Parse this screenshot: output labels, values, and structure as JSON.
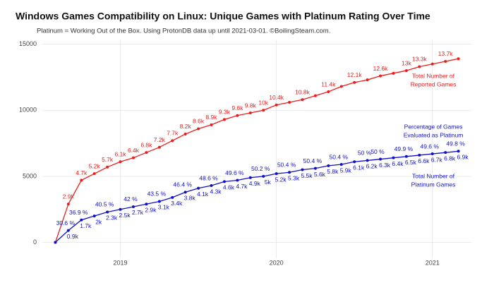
{
  "chart_data": {
    "type": "line",
    "title": "Windows Games Compatibility on Linux: Unique Games with Platinum Rating Over Time",
    "subtitle": "Platinum = Working Out of the Box. Using ProtonDB data up until 2021-03-01. ©BoilingSteam.com.",
    "x": [
      "2018-08",
      "2018-09",
      "2018-10",
      "2018-11",
      "2018-12",
      "2019-01",
      "2019-02",
      "2019-03",
      "2019-04",
      "2019-05",
      "2019-06",
      "2019-07",
      "2019-08",
      "2019-09",
      "2019-10",
      "2019-11",
      "2019-12",
      "2020-01",
      "2020-02",
      "2020-03",
      "2020-04",
      "2020-05",
      "2020-06",
      "2020-07",
      "2020-08",
      "2020-09",
      "2020-10",
      "2020-11",
      "2020-12",
      "2021-01",
      "2021-02",
      "2021-03"
    ],
    "xlim": [
      "2018-07",
      "2021-04"
    ],
    "xticks": [
      {
        "value": "2019-01",
        "label": "2019"
      },
      {
        "value": "2020-01",
        "label": "2020"
      },
      {
        "value": "2021-01",
        "label": "2021"
      }
    ],
    "ylim": [
      -1200,
      15300
    ],
    "yticks": [
      0,
      5000,
      10000,
      15000
    ],
    "grid": true,
    "series": [
      {
        "name": "Total Number of Reported Games",
        "color": "#ee1c1c",
        "values": [
          0,
          2900,
          4700,
          5200,
          5700,
          6100,
          6400,
          6800,
          7200,
          7700,
          8200,
          8600,
          8900,
          9300,
          9600,
          9800,
          10000,
          10400,
          10600,
          10800,
          11100,
          11400,
          11800,
          12100,
          12300,
          12600,
          12800,
          13000,
          13300,
          13500,
          13700,
          13900
        ],
        "value_labels": [
          null,
          "2.9k",
          "4.7k",
          "5.2k",
          "5.7k",
          "6.1k",
          "6.4k",
          "6.8k",
          "7.2k",
          "7.7k",
          "8.2k",
          "8.6k",
          "8.9k",
          "9.3k",
          "9.6k",
          "9.8k",
          "10k",
          "10.4k",
          null,
          "10.8k",
          null,
          "11.4k",
          null,
          "12.1k",
          null,
          "12.6k",
          null,
          "13k",
          "13.3k",
          null,
          "13.7k",
          null
        ]
      },
      {
        "name": "Total Number of Platinum Games",
        "color": "#1010cc",
        "values": [
          0,
          900,
          1700,
          2000,
          2300,
          2500,
          2700,
          2900,
          3100,
          3400,
          3800,
          4100,
          4300,
          4600,
          4700,
          4900,
          5000,
          5200,
          5300,
          5500,
          5600,
          5800,
          5900,
          6100,
          6200,
          6300,
          6400,
          6500,
          6600,
          6700,
          6800,
          6900
        ],
        "value_labels": [
          null,
          "0.9k",
          "1.7k",
          "2k",
          "2.3k",
          "2.5k",
          "2.7k",
          "2.9k",
          "3.1k",
          "3.4k",
          "3.8k",
          "4.1k",
          "4.3k",
          "4.6k",
          "4.7k",
          "4.9k",
          "5k",
          "5.2k",
          "5.3k",
          "5.5k",
          "5.6k",
          "5.8k",
          "5.9k",
          "6.1k",
          "6.2k",
          "6.3k",
          "6.4k",
          "6.5k",
          "6.6k",
          "6.7k",
          "6.8k",
          "6.9k"
        ]
      }
    ],
    "percentages": {
      "name": "Percentage of Games Evaluated as Platinum",
      "color": "#1010cc",
      "values": [
        null,
        30.6,
        36.9,
        null,
        40.5,
        null,
        42,
        null,
        43.5,
        null,
        46.4,
        null,
        48.6,
        null,
        49.6,
        null,
        50.2,
        null,
        50.4,
        null,
        50.4,
        null,
        50.4,
        null,
        50,
        50,
        null,
        49.9,
        null,
        49.6,
        null,
        49.8
      ],
      "value_labels": [
        null,
        "30.6 %",
        "36.9 %",
        null,
        "40.5 %",
        null,
        "42 %",
        null,
        "43.5 %",
        null,
        "46.4 %",
        null,
        "48.6 %",
        null,
        "49.6 %",
        null,
        "50.2 %",
        null,
        "50.4 %",
        null,
        "50.4 %",
        null,
        "50.4 %",
        null,
        "50 %",
        "50 %",
        null,
        "49.9 %",
        null,
        "49.6 %",
        null,
        "49.8 %"
      ]
    },
    "annotations": [
      {
        "lines": [
          "Total Number of",
          "Reported Games"
        ],
        "color": "#ee1c1c"
      },
      {
        "lines": [
          "Percentage of Games",
          "Evaluated as Platinum"
        ],
        "color": "#1010cc"
      },
      {
        "lines": [
          "Total Number of",
          "Platinum Games"
        ],
        "color": "#1010cc"
      }
    ]
  }
}
